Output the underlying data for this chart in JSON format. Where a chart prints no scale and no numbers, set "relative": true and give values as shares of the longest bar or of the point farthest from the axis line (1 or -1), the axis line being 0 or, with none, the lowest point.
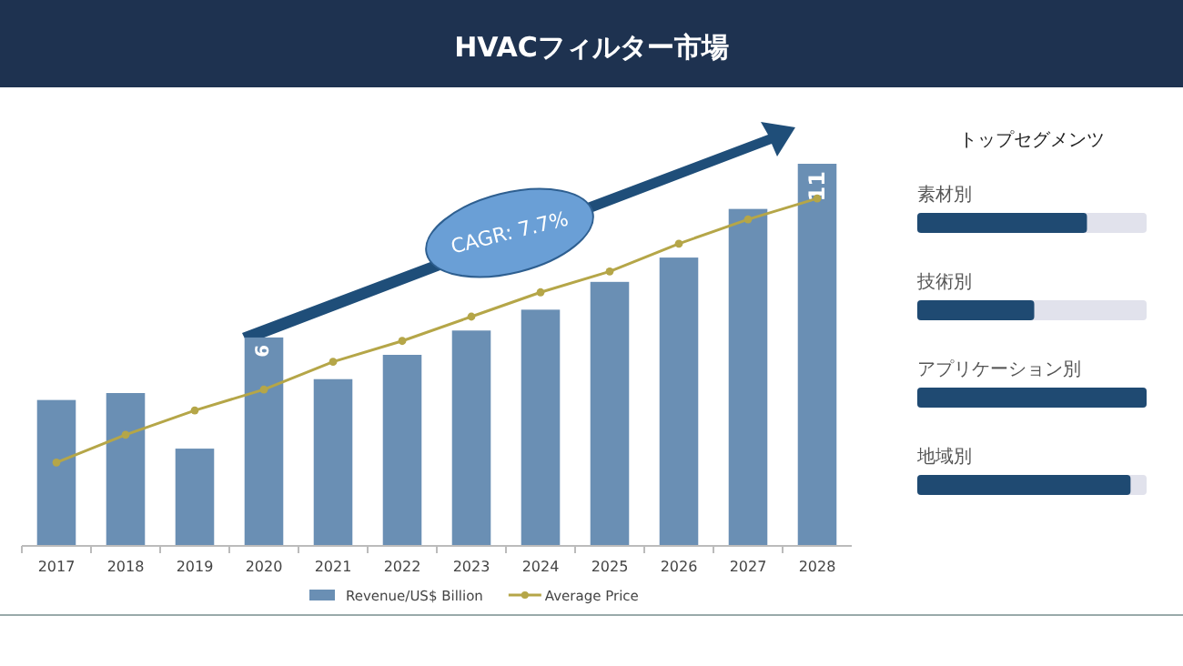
{
  "chart_data": [
    {
      "type": "bar",
      "title": "HVACフィルター市場",
      "categories": [
        "2017",
        "2018",
        "2019",
        "2020",
        "2021",
        "2022",
        "2023",
        "2024",
        "2025",
        "2026",
        "2027",
        "2028"
      ],
      "legend": "bottom",
      "annotations": [
        "CAGR: 7.7%"
      ],
      "series": [
        {
          "name": "Revenue/US$ Billion",
          "color": "#6a8fb4",
          "values": [
            4.2,
            4.4,
            2.8,
            6,
            4.8,
            5.5,
            6.2,
            6.8,
            7.6,
            8.3,
            9.7,
            11
          ],
          "value_labels": [
            null,
            null,
            null,
            "6",
            null,
            null,
            null,
            null,
            null,
            null,
            null,
            "11"
          ]
        },
        {
          "name": "Average Price",
          "type": "line",
          "color": "#b5a648",
          "marker": "circle",
          "values": [
            2.4,
            3.2,
            3.9,
            4.5,
            5.3,
            5.9,
            6.6,
            7.3,
            7.9,
            8.7,
            9.4,
            10.0
          ]
        }
      ]
    },
    {
      "type": "bar",
      "orientation": "horizontal",
      "title": "トップセグメンツ",
      "relative": true,
      "categories": [
        "素材別",
        "技術別",
        "アプリケーション別",
        "地域別"
      ],
      "color": "#1f4a72",
      "values": [
        0.74,
        0.51,
        1,
        0.93
      ]
    }
  ]
}
